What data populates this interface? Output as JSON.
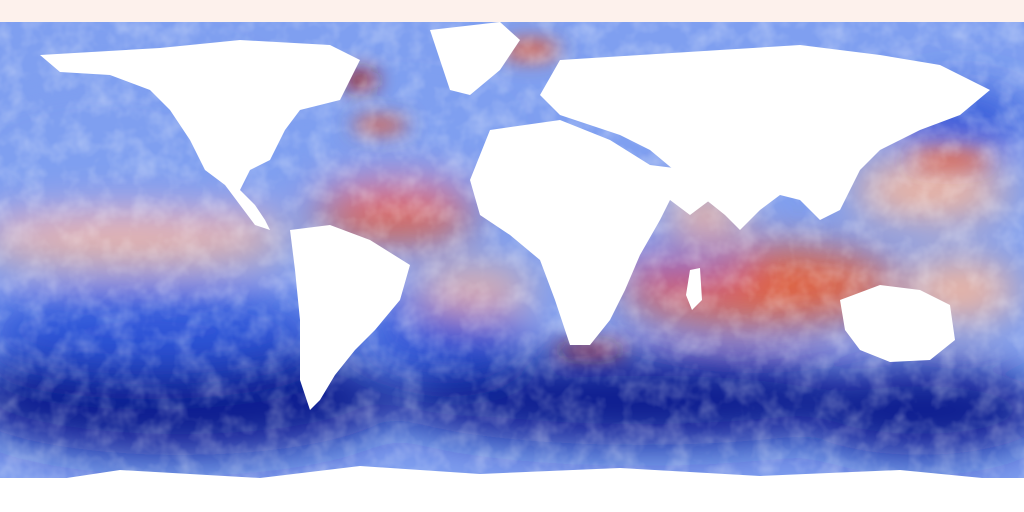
{
  "map": {
    "kind": "global sea surface temperature anomaly map",
    "projection": "equirectangular",
    "legend_visible": false,
    "title": "",
    "colors": {
      "strong_cold": "#0a1f8f",
      "cold": "#2d55d8",
      "cool": "#7f9ff0",
      "neutral": "#f4f6ff",
      "warm": "#f6b79b",
      "hot": "#e4603a",
      "very_hot": "#a51a12",
      "land": "#ffffff",
      "sea_ice": "#fdf1ec"
    },
    "regions": [
      {
        "name": "north-pacific",
        "tone": "cool"
      },
      {
        "name": "equatorial-pacific",
        "tone": "warm"
      },
      {
        "name": "southern-ocean",
        "tone": "strong_cold"
      },
      {
        "name": "tropical-north-atlantic",
        "tone": "hot"
      },
      {
        "name": "south-indian-ocean",
        "tone": "hot"
      },
      {
        "name": "north-atlantic",
        "tone": "cool"
      },
      {
        "name": "south-atlantic",
        "tone": "cold"
      }
    ],
    "features": {
      "land_labels": "none",
      "graticule": false,
      "arctic_sea_ice": true
    }
  }
}
